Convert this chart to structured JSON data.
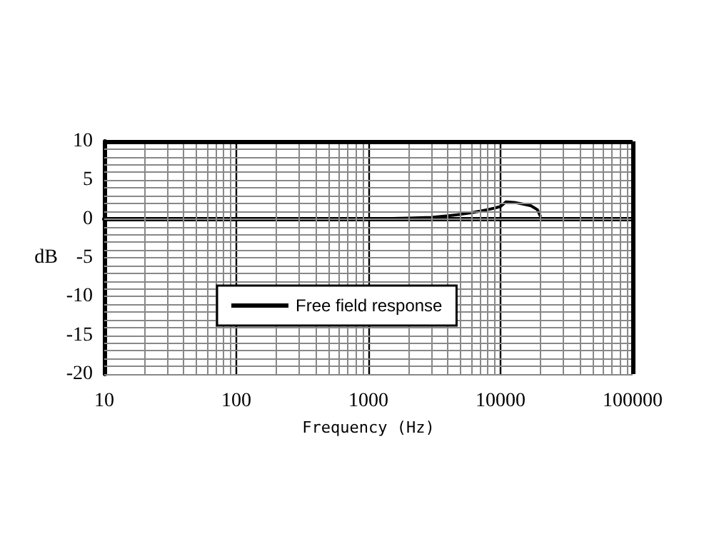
{
  "chart_data": {
    "type": "line",
    "xlabel": "Frequency (Hz)",
    "ylabel": "dB",
    "xlim": [
      10,
      100000
    ],
    "xticks": [
      10,
      100,
      1000,
      10000,
      100000
    ],
    "ylim": [
      -20,
      10
    ],
    "yticks": [
      -20,
      -15,
      -10,
      -5,
      0,
      5,
      10
    ],
    "log": "x",
    "grid": true,
    "legend": "left",
    "marker": "none",
    "line_style": "solid",
    "series": [
      {
        "name": "Free field response",
        "color": "#000000",
        "x": [
          20,
          50,
          100,
          200,
          500,
          1000,
          2000,
          3000,
          4000,
          5000,
          6000,
          7000,
          8000,
          9000,
          10000,
          11000,
          13000,
          15000,
          17000,
          19000,
          20000
        ],
        "values": [
          0,
          0,
          0,
          0,
          0,
          0,
          0.1,
          0.2,
          0.4,
          0.6,
          0.8,
          1,
          1.2,
          1.4,
          1.6,
          2.2,
          2.1,
          1.9,
          1.7,
          1.2,
          0.4
        ]
      }
    ]
  }
}
